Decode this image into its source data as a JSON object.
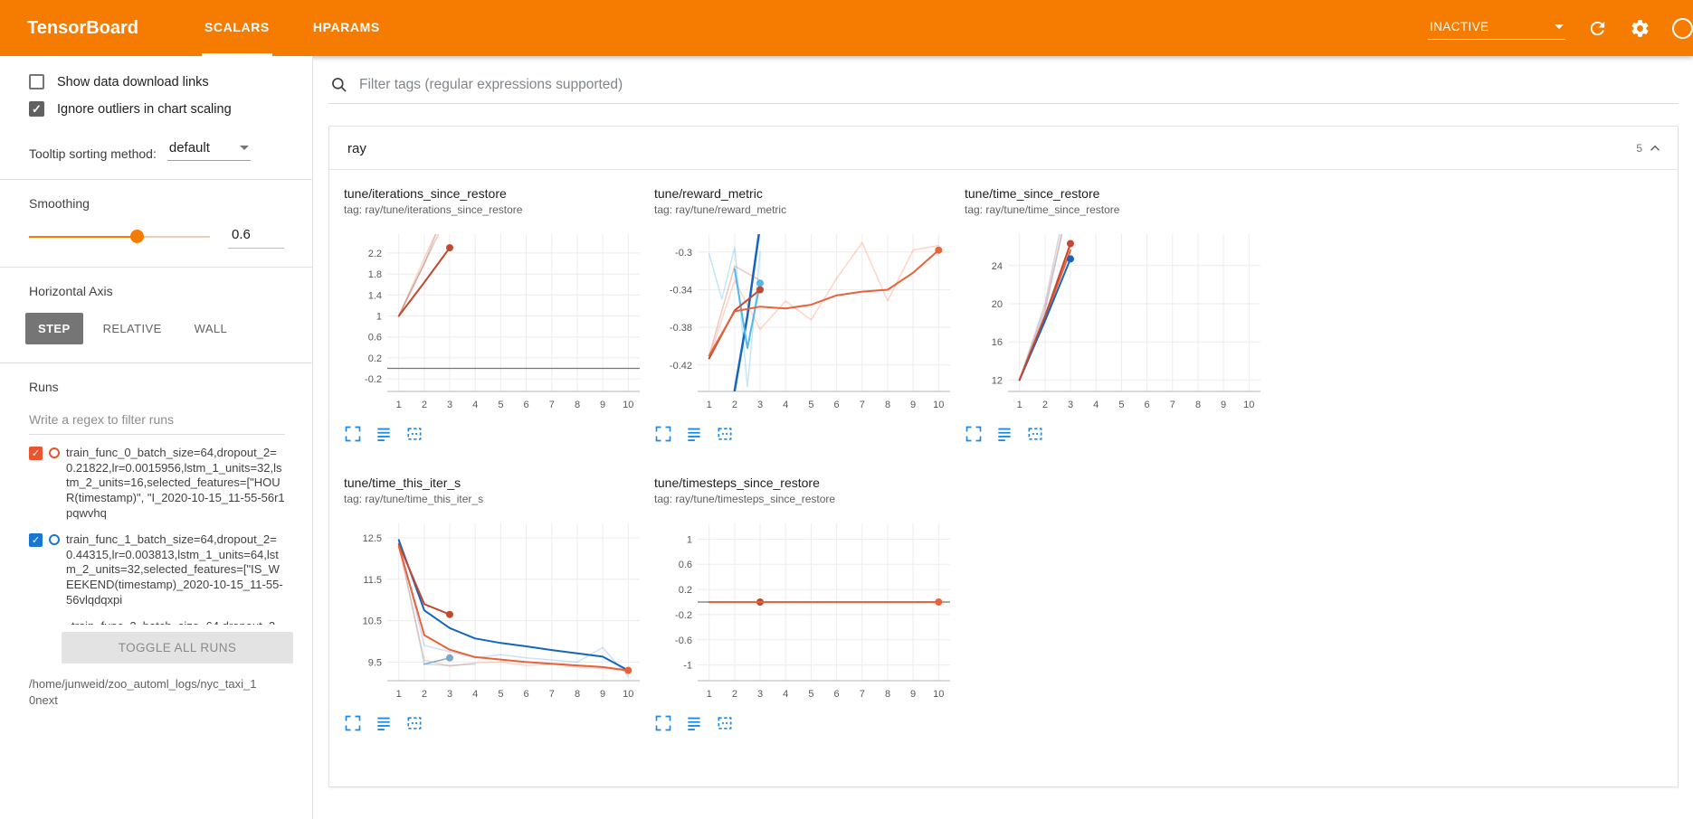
{
  "header": {
    "brand": "TensorBoard",
    "tabs": [
      {
        "label": "SCALARS",
        "active": true
      },
      {
        "label": "HPARAMS",
        "active": false
      }
    ],
    "status_value": "INACTIVE"
  },
  "colors": {
    "header_orange": "#f57c00",
    "accent_blue": "#1e88e5",
    "run0": "#e8562f",
    "run1": "#1976d2",
    "selected_axis_bg": "#757575"
  },
  "icons": {
    "search": "magnifier",
    "refresh": "circular-arrow",
    "settings": "gear",
    "help": "question-circle",
    "status_caret": "triangle-down",
    "collapse": "chevron-up",
    "expand_chart": "corner-brackets",
    "run_selector": "stacked-lines",
    "fit_domain": "dashed-box"
  },
  "sidebar": {
    "show_download_label": "Show data download links",
    "ignore_outliers_label": "Ignore outliers in chart scaling",
    "tooltip_label": "Tooltip sorting method:",
    "tooltip_value": "default",
    "smoothing_label": "Smoothing",
    "smoothing_value": "0.6",
    "axis_label": "Horizontal Axis",
    "axis_options": [
      {
        "label": "STEP",
        "selected": true
      },
      {
        "label": "RELATIVE",
        "selected": false
      },
      {
        "label": "WALL",
        "selected": false
      }
    ],
    "runs_label": "Runs",
    "runs_filter_placeholder": "Write a regex to filter runs",
    "runs": [
      {
        "text": "train_func_0_batch_size=64,dropout_2=0.21822,lr=0.0015956,lstm_1_units=32,lstm_2_units=16,selected_features=[\"HOUR(timestamp)\", \"I_2020-10-15_11-55-56r1pqwvhq",
        "color": "#e8562f",
        "checked": true,
        "partial": false
      },
      {
        "text": "train_func_1_batch_size=64,dropout_2=0.44315,lr=0.003813,lstm_1_units=64,lstm_2_units=32,selected_features=[\"IS_WEEKEND(timestamp)_2020-10-15_11-55-56vlqdqxpi",
        "color": "#1976d2",
        "checked": true,
        "partial": false
      },
      {
        "text": "train_func_2_batch_size=64,dropout_2=",
        "color": "#9e9e9e",
        "checked": false,
        "partial": true
      }
    ],
    "toggle_all_label": "TOGGLE ALL RUNS",
    "log_path": "/home/junweid/zoo_automl_logs/nyc_taxi_10next"
  },
  "main": {
    "filter_placeholder": "Filter tags (regular expressions supported)",
    "section_title": "ray",
    "section_count": "5"
  },
  "chart_data": [
    {
      "type": "line",
      "title": "tune/iterations_since_restore",
      "tag": "tag: ray/tune/iterations_since_restore",
      "xlim": [
        0.55,
        10.45
      ],
      "ylim": [
        -0.44,
        2.56
      ],
      "xticks": [
        1,
        2,
        3,
        4,
        5,
        6,
        7,
        8,
        9,
        10
      ],
      "yticks": [
        "-0.2",
        "0.2",
        "0.6",
        "1",
        "1.4",
        "1.8",
        "2.2"
      ],
      "zero_line": true,
      "series": [
        {
          "color": "#9e9e9e",
          "o": 0.45,
          "w": 1.5,
          "x": [
            1,
            2,
            2.9
          ],
          "y": [
            1,
            2,
            3.1
          ]
        },
        {
          "color": "#ff7043",
          "o": 0.3,
          "w": 1.5,
          "x": [
            1,
            2,
            2.95
          ],
          "y": [
            1,
            2.1,
            3.1
          ]
        },
        {
          "color": "#c0492f",
          "o": 0.3,
          "w": 1.5,
          "x": [
            1,
            2,
            3
          ],
          "y": [
            1,
            2,
            3
          ]
        },
        {
          "color": "#c0492f",
          "o": 1,
          "w": 2,
          "x": [
            1,
            2,
            3
          ],
          "y": [
            1,
            1.64,
            2.3
          ],
          "dot": [
            3,
            2.3
          ]
        }
      ]
    },
    {
      "type": "line",
      "title": "tune/reward_metric",
      "tag": "tag: ray/tune/reward_metric",
      "xlim": [
        0.55,
        10.45
      ],
      "ylim": [
        -0.448,
        -0.281
      ],
      "xticks": [
        1,
        2,
        3,
        4,
        5,
        6,
        7,
        8,
        9,
        10
      ],
      "yticks": [
        "-0.42",
        "-0.38",
        "-0.34",
        "-0.3"
      ],
      "zero_line": false,
      "series": [
        {
          "color": "#ff7043",
          "o": 0.3,
          "w": 1.5,
          "x": [
            1,
            2,
            3,
            4,
            5,
            6,
            7,
            8,
            9,
            10
          ],
          "y": [
            -0.413,
            -0.33,
            -0.382,
            -0.352,
            -0.372,
            -0.328,
            -0.29,
            -0.352,
            -0.298,
            -0.293
          ]
        },
        {
          "color": "#55b7e8",
          "o": 0.35,
          "w": 1.5,
          "x": [
            1,
            1.5,
            2,
            2.5,
            3
          ],
          "y": [
            -0.302,
            -0.35,
            -0.295,
            -0.443,
            -0.3
          ]
        },
        {
          "color": "#c0492f",
          "o": 0.3,
          "w": 1.5,
          "x": [
            1,
            2,
            3
          ],
          "y": [
            -0.41,
            -0.315,
            -0.33
          ]
        },
        {
          "color": "#1565c0",
          "o": 1,
          "w": 2.5,
          "x": [
            2,
            2.5,
            3
          ],
          "y": [
            -0.447,
            -0.368,
            -0.272
          ]
        },
        {
          "color": "#55b7e8",
          "o": 1,
          "w": 2,
          "x": [
            2,
            2.5,
            3
          ],
          "y": [
            -0.318,
            -0.402,
            -0.333
          ],
          "dot": [
            3,
            -0.333
          ]
        },
        {
          "color": "#c0492f",
          "o": 1,
          "w": 2,
          "x": [
            1,
            2,
            3
          ],
          "y": [
            -0.413,
            -0.362,
            -0.34
          ],
          "dot": [
            3,
            -0.34
          ]
        },
        {
          "color": "#e8623a",
          "o": 1,
          "w": 2,
          "x": [
            1,
            2,
            3,
            4,
            5,
            6,
            7,
            8,
            9,
            10
          ],
          "y": [
            -0.41,
            -0.363,
            -0.358,
            -0.36,
            -0.356,
            -0.346,
            -0.342,
            -0.34,
            -0.322,
            -0.298
          ],
          "dot": [
            10,
            -0.298
          ]
        }
      ]
    },
    {
      "type": "line",
      "title": "tune/time_since_restore",
      "tag": "tag: ray/tune/time_since_restore",
      "xlim": [
        0.55,
        10.45
      ],
      "ylim": [
        10.8,
        27.3
      ],
      "xticks": [
        1,
        2,
        3,
        4,
        5,
        6,
        7,
        8,
        9,
        10
      ],
      "yticks": [
        "12",
        "16",
        "20",
        "24"
      ],
      "zero_line": false,
      "series": [
        {
          "color": "#b0aec2",
          "o": 0.5,
          "w": 1.5,
          "x": [
            1,
            2,
            2.62
          ],
          "y": [
            12,
            20,
            28
          ]
        },
        {
          "color": "#ff7043",
          "o": 0.3,
          "w": 1.5,
          "x": [
            1,
            2,
            2.7
          ],
          "y": [
            12,
            19.6,
            28
          ]
        },
        {
          "color": "#1565c0",
          "o": 0.25,
          "w": 1.5,
          "x": [
            1,
            2,
            2.72
          ],
          "y": [
            12,
            19.2,
            28
          ]
        },
        {
          "color": "#e8623a",
          "o": 1,
          "w": 2,
          "x": [
            1,
            2,
            3
          ],
          "y": [
            12,
            18.5,
            25.6
          ]
        },
        {
          "color": "#1565c0",
          "o": 1,
          "w": 2,
          "x": [
            1,
            2,
            3
          ],
          "y": [
            12,
            18.2,
            24.7
          ],
          "dot": [
            3,
            24.7
          ]
        },
        {
          "color": "#c0492f",
          "o": 1,
          "w": 2,
          "x": [
            1,
            2,
            3
          ],
          "y": [
            12,
            18.7,
            26.3
          ],
          "dot": [
            3,
            26.3
          ]
        }
      ]
    },
    {
      "type": "line",
      "title": "tune/time_this_iter_s",
      "tag": "tag: ray/tune/time_this_iter_s",
      "xlim": [
        0.55,
        10.45
      ],
      "ylim": [
        9.05,
        12.85
      ],
      "xticks": [
        1,
        2,
        3,
        4,
        5,
        6,
        7,
        8,
        9,
        10
      ],
      "yticks": [
        "9.5",
        "10.5",
        "11.5",
        "12.5"
      ],
      "zero_line": false,
      "series": [
        {
          "color": "#55b7e8",
          "o": 0.4,
          "w": 1.5,
          "x": [
            1,
            2,
            3,
            4
          ],
          "y": [
            12.4,
            9.45,
            9.42,
            9.45
          ]
        },
        {
          "color": "#ff7043",
          "o": 0.3,
          "w": 1.5,
          "x": [
            1,
            2,
            3,
            4,
            5,
            6,
            7,
            8,
            9,
            10
          ],
          "y": [
            12.3,
            9.55,
            9.4,
            9.48,
            9.5,
            9.42,
            9.45,
            9.38,
            9.35,
            9.28
          ]
        },
        {
          "color": "#1565c0",
          "o": 0.2,
          "w": 1.5,
          "x": [
            1,
            2,
            3,
            4,
            5,
            6,
            7,
            8,
            9,
            10
          ],
          "y": [
            12.45,
            9.9,
            9.75,
            9.6,
            9.68,
            9.6,
            9.55,
            9.5,
            9.85,
            9.15
          ]
        },
        {
          "color": "#1565c0",
          "o": 1,
          "w": 2,
          "x": [
            1,
            2,
            3,
            4,
            5,
            6,
            7,
            8,
            9,
            10
          ],
          "y": [
            12.45,
            10.75,
            10.32,
            10.07,
            9.96,
            9.88,
            9.79,
            9.71,
            9.63,
            9.3
          ]
        },
        {
          "color": "#c0492f",
          "o": 1,
          "w": 2,
          "x": [
            1,
            2,
            3
          ],
          "y": [
            12.35,
            10.9,
            10.65
          ],
          "dot": [
            3,
            10.65
          ]
        },
        {
          "color": "#7fa7c2",
          "o": 1,
          "w": 1.5,
          "x": [
            2,
            3
          ],
          "y": [
            9.45,
            9.6
          ],
          "dot": [
            3,
            9.6
          ]
        },
        {
          "color": "#e8623a",
          "o": 1,
          "w": 2,
          "x": [
            1,
            2,
            3,
            4,
            5,
            6,
            7,
            8,
            9,
            10
          ],
          "y": [
            12.3,
            10.15,
            9.8,
            9.62,
            9.56,
            9.5,
            9.46,
            9.42,
            9.38,
            9.3
          ],
          "dot": [
            10,
            9.3
          ]
        }
      ]
    },
    {
      "type": "line",
      "title": "tune/timesteps_since_restore",
      "tag": "tag: ray/tune/timesteps_since_restore",
      "xlim": [
        0.55,
        10.45
      ],
      "ylim": [
        -1.25,
        1.25
      ],
      "xticks": [
        1,
        2,
        3,
        4,
        5,
        6,
        7,
        8,
        9,
        10
      ],
      "yticks": [
        "-1",
        "-0.6",
        "-0.2",
        "0.2",
        "0.6",
        "1"
      ],
      "zero_line": true,
      "series": [
        {
          "color": "#1565c0",
          "o": 1,
          "w": 2,
          "x": [
            1,
            2,
            3
          ],
          "y": [
            0,
            0,
            0
          ]
        },
        {
          "color": "#c0492f",
          "o": 1,
          "w": 2,
          "x": [
            1,
            2,
            3
          ],
          "y": [
            0,
            0,
            0
          ],
          "dot": [
            3,
            0
          ]
        },
        {
          "color": "#e8623a",
          "o": 1,
          "w": 2,
          "x": [
            1,
            2,
            3,
            4,
            5,
            6,
            7,
            8,
            9,
            10
          ],
          "y": [
            0,
            0,
            0,
            0,
            0,
            0,
            0,
            0,
            0,
            0
          ],
          "dot": [
            10,
            0
          ]
        }
      ]
    }
  ]
}
